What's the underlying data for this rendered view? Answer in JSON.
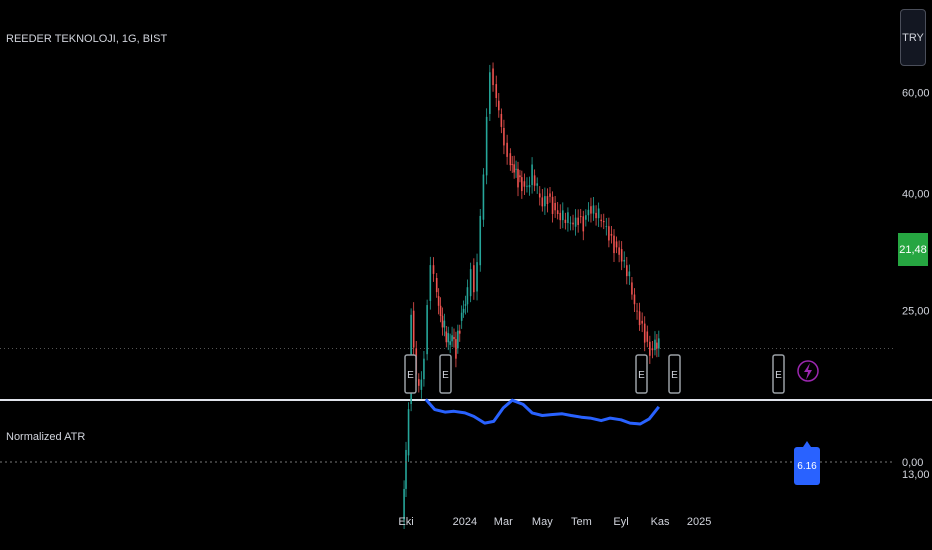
{
  "header": {
    "symbol_title": "REEDER TEKNOLOJI, 1G, BIST",
    "currency_button": "TRY",
    "last_price_label": "21,48",
    "lightning_icon": "lightning-icon"
  },
  "indicator": {
    "title": "Normalized ATR",
    "last_value_label": "6.16",
    "zero_label": "0,00"
  },
  "colors": {
    "background": "#000000",
    "up_candle": "#26a69a",
    "down_candle": "#ef5350",
    "price_line_tag": "#26a641",
    "atr_line": "#2962ff",
    "event_icon_color": "#9aa0a6",
    "lightning_color": "#9c27b0"
  },
  "chart_data": [
    {
      "type": "line",
      "title": "REEDER TEKNOLOJI, 1G, BIST",
      "scale": "log",
      "y_ticks": [
        "60,00",
        "40,00",
        "25,00",
        "13,00"
      ],
      "y_tick_values": [
        60,
        40,
        25,
        13
      ],
      "x_ticks": [
        "Eki",
        "2024",
        "Mar",
        "May",
        "Tem",
        "Eyl",
        "Kas",
        "2025"
      ],
      "x_tick_dates": [
        "2023-10-01",
        "2024-01-01",
        "2024-03-01",
        "2024-05-01",
        "2024-07-01",
        "2024-09-01",
        "2024-11-01",
        "2025-01-01"
      ],
      "last_price": 21.48,
      "series": [
        {
          "x": [
            "2023-09-25",
            "2023-10-01",
            "2023-10-05",
            "2023-10-09",
            "2023-10-13",
            "2023-10-17",
            "2023-10-21",
            "2023-10-25",
            "2023-10-29",
            "2023-11-03",
            "2023-11-08",
            "2023-11-13",
            "2023-11-18",
            "2023-11-24",
            "2023-11-30",
            "2023-12-06",
            "2023-12-12",
            "2023-12-18",
            "2023-12-24",
            "2023-12-30",
            "2024-01-05",
            "2024-01-10",
            "2024-01-15",
            "2024-01-20",
            "2024-01-25",
            "2024-01-30",
            "2024-02-04",
            "2024-02-09",
            "2024-02-14",
            "2024-02-19",
            "2024-02-23",
            "2024-02-27",
            "2024-03-02",
            "2024-03-07",
            "2024-03-12",
            "2024-03-18",
            "2024-03-24",
            "2024-03-30",
            "2024-04-07",
            "2024-04-15",
            "2024-04-23",
            "2024-05-01",
            "2024-05-09",
            "2024-05-17",
            "2024-05-25",
            "2024-06-02",
            "2024-06-10",
            "2024-06-18",
            "2024-06-26",
            "2024-07-04",
            "2024-07-12",
            "2024-07-20",
            "2024-07-28",
            "2024-08-05",
            "2024-08-13",
            "2024-08-21",
            "2024-08-29",
            "2024-09-06",
            "2024-09-14",
            "2024-09-22",
            "2024-09-30",
            "2024-10-08",
            "2024-10-16",
            "2024-10-24",
            "2024-10-30"
          ],
          "close": [
            10.8,
            14.0,
            17.2,
            25.0,
            21.5,
            19.0,
            18.2,
            19.0,
            21.0,
            26.0,
            30.0,
            28.5,
            26.5,
            24.5,
            23.0,
            21.8,
            22.5,
            21.5,
            24.0,
            25.5,
            26.5,
            30.0,
            27.0,
            30.0,
            36.0,
            43.0,
            55.0,
            66.0,
            62.0,
            58.0,
            55.0,
            52.0,
            49.0,
            47.0,
            45.0,
            44.0,
            43.0,
            42.0,
            41.0,
            43.0,
            40.0,
            38.0,
            40.0,
            38.5,
            37.0,
            36.0,
            35.5,
            35.0,
            36.5,
            36.0,
            38.0,
            37.0,
            36.0,
            35.0,
            34.0,
            33.0,
            32.0,
            30.0,
            28.0,
            25.0,
            24.0,
            23.0,
            21.5,
            22.0,
            21.48
          ]
        }
      ],
      "event_markers": [
        "E",
        "E",
        "E",
        "E",
        "E"
      ]
    },
    {
      "type": "line",
      "title": "Normalized ATR",
      "y_ticks": [
        "0,00"
      ],
      "y_tick_values": [
        0
      ],
      "last_value": 6.16,
      "series": [
        {
          "name": "Normalized ATR",
          "x": [
            "2023-11-01",
            "2023-11-15",
            "2023-12-01",
            "2023-12-15",
            "2024-01-01",
            "2024-01-15",
            "2024-02-01",
            "2024-02-15",
            "2024-03-01",
            "2024-03-15",
            "2024-04-01",
            "2024-04-15",
            "2024-05-01",
            "2024-05-15",
            "2024-06-01",
            "2024-06-15",
            "2024-07-01",
            "2024-07-15",
            "2024-08-01",
            "2024-08-15",
            "2024-09-01",
            "2024-09-15",
            "2024-10-01",
            "2024-10-15",
            "2024-10-30"
          ],
          "values": [
            6.6,
            6.0,
            5.85,
            5.9,
            5.8,
            5.6,
            5.2,
            5.3,
            6.1,
            6.55,
            6.3,
            5.8,
            5.65,
            5.7,
            5.75,
            5.65,
            5.55,
            5.5,
            5.35,
            5.5,
            5.4,
            5.2,
            5.15,
            5.45,
            6.16
          ]
        }
      ]
    }
  ]
}
